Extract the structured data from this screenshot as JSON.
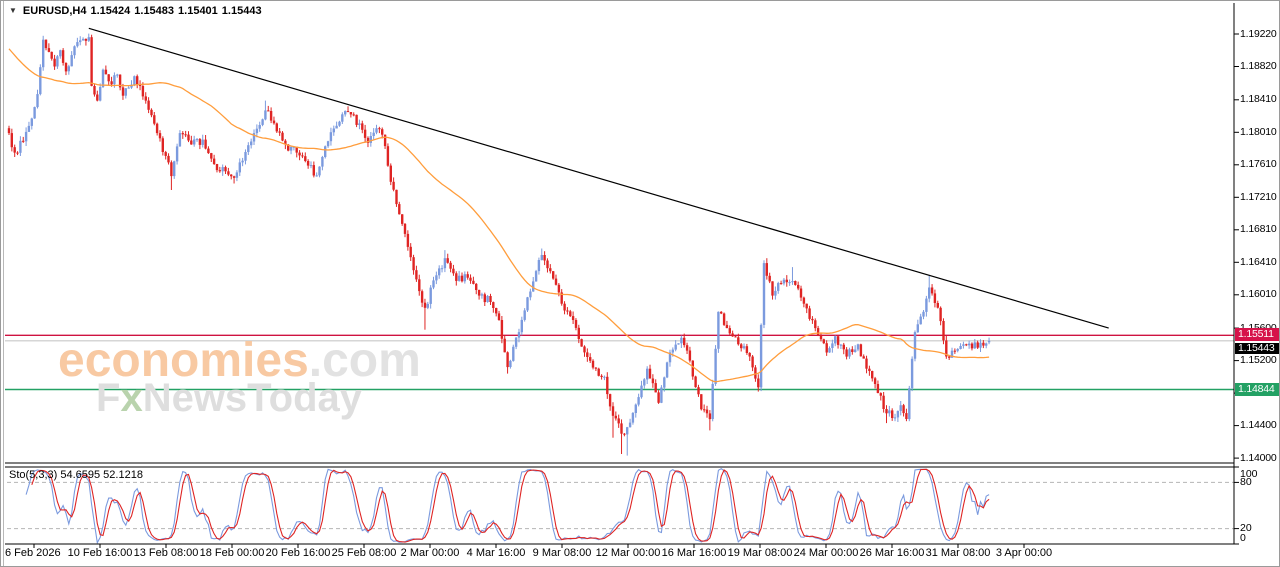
{
  "header": {
    "collapse_glyph": "▼",
    "symbol_period": "EURUSD,H4",
    "open": "1.15424",
    "high": "1.15483",
    "low": "1.15401",
    "close": "1.15443"
  },
  "watermark": {
    "brand": "economies",
    "brand_suffix": ".com",
    "tagline_prefix": "F",
    "tagline_x": "x",
    "tagline_suffix": "NewsToday",
    "brand_color": "#f8c9a2",
    "suffix_color": "#e2e2e2",
    "tagline_color": "#dedede",
    "tagline_x_color": "#b9d3ad"
  },
  "price_axis": {
    "ticks": [
      "1.19220",
      "1.18820",
      "1.18410",
      "1.18010",
      "1.17610",
      "1.17210",
      "1.16810",
      "1.16410",
      "1.16010",
      "1.15600",
      "1.15200",
      "1.14800",
      "1.14400",
      "1.14000"
    ],
    "boxes": {
      "resistance": {
        "text": "1.15511",
        "color": "#d6134a"
      },
      "current": {
        "text": "1.15443",
        "color": "#000000"
      },
      "support": {
        "text": "1.14844",
        "color": "#23a164"
      }
    }
  },
  "time_axis": {
    "labels": [
      "6 Feb 2026",
      "10 Feb 16:00",
      "13 Feb 08:00",
      "18 Feb 00:00",
      "20 Feb 16:00",
      "25 Feb 08:00",
      "2 Mar 00:00",
      "4 Mar 16:00",
      "9 Mar 08:00",
      "12 Mar 00:00",
      "16 Mar 16:00",
      "19 Mar 08:00",
      "24 Mar 00:00",
      "26 Mar 16:00",
      "31 Mar 08:00",
      "3 Apr 00:00"
    ]
  },
  "indicator_pane": {
    "label": "Sto(5,3,3) 54.6595 52.1218",
    "levels": [
      "100",
      "80",
      "20",
      "0"
    ]
  },
  "chart_data": {
    "type": "candlestick",
    "symbol": "EURUSD",
    "period": "H4",
    "bars": 345,
    "ohlc_last": {
      "open": 1.15424,
      "high": 1.15483,
      "low": 1.15401,
      "close": 1.15443
    },
    "price_range_visible": [
      1.14,
      1.193
    ],
    "price_anchors": [
      [
        0,
        1.18
      ],
      [
        2,
        1.1776
      ],
      [
        5,
        1.179
      ],
      [
        8,
        1.1818
      ],
      [
        10,
        1.1848
      ],
      [
        12,
        1.1915
      ],
      [
        14,
        1.19
      ],
      [
        16,
        1.1882
      ],
      [
        18,
        1.1902
      ],
      [
        20,
        1.1876
      ],
      [
        22,
        1.1896
      ],
      [
        24,
        1.1912
      ],
      [
        26,
        1.1916
      ],
      [
        28,
        1.1918
      ],
      [
        29,
        1.1858
      ],
      [
        31,
        1.184
      ],
      [
        33,
        1.1878
      ],
      [
        36,
        1.186
      ],
      [
        38,
        1.1872
      ],
      [
        40,
        1.1846
      ],
      [
        42,
        1.1856
      ],
      [
        44,
        1.187
      ],
      [
        46,
        1.1858
      ],
      [
        48,
        1.184
      ],
      [
        50,
        1.1822
      ],
      [
        52,
        1.18
      ],
      [
        55,
        1.1772
      ],
      [
        57,
        1.1747
      ],
      [
        60,
        1.18
      ],
      [
        64,
        1.1786
      ],
      [
        68,
        1.1792
      ],
      [
        72,
        1.1762
      ],
      [
        76,
        1.1753
      ],
      [
        79,
        1.1745
      ],
      [
        82,
        1.1766
      ],
      [
        86,
        1.18
      ],
      [
        90,
        1.1828
      ],
      [
        93,
        1.1812
      ],
      [
        97,
        1.1786
      ],
      [
        101,
        1.1776
      ],
      [
        105,
        1.176
      ],
      [
        108,
        1.1748
      ],
      [
        112,
        1.179
      ],
      [
        116,
        1.1814
      ],
      [
        119,
        1.1826
      ],
      [
        123,
        1.1812
      ],
      [
        126,
        1.1788
      ],
      [
        129,
        1.1806
      ],
      [
        131,
        1.1798
      ],
      [
        134,
        1.174
      ],
      [
        137,
        1.17
      ],
      [
        140,
        1.166
      ],
      [
        143,
        1.162
      ],
      [
        146,
        1.1585
      ],
      [
        150,
        1.1625
      ],
      [
        153,
        1.1646
      ],
      [
        157,
        1.1618
      ],
      [
        161,
        1.1622
      ],
      [
        165,
        1.16
      ],
      [
        169,
        1.1592
      ],
      [
        172,
        1.157
      ],
      [
        175,
        1.1512
      ],
      [
        179,
        1.1555
      ],
      [
        183,
        1.1605
      ],
      [
        187,
        1.165
      ],
      [
        190,
        1.163
      ],
      [
        194,
        1.159
      ],
      [
        198,
        1.157
      ],
      [
        202,
        1.153
      ],
      [
        206,
        1.151
      ],
      [
        209,
        1.15
      ],
      [
        212,
        1.1452
      ],
      [
        215,
        1.143
      ],
      [
        217,
        1.1438
      ],
      [
        221,
        1.1475
      ],
      [
        224,
        1.151
      ],
      [
        228,
        1.1468
      ],
      [
        232,
        1.153
      ],
      [
        236,
        1.1548
      ],
      [
        239,
        1.152
      ],
      [
        243,
        1.146
      ],
      [
        246,
        1.1448
      ],
      [
        249,
        1.158
      ],
      [
        252,
        1.156
      ],
      [
        256,
        1.154
      ],
      [
        260,
        1.1525
      ],
      [
        263,
        1.1487
      ],
      [
        265,
        1.164
      ],
      [
        268,
        1.16
      ],
      [
        271,
        1.1615
      ],
      [
        275,
        1.1618
      ],
      [
        279,
        1.159
      ],
      [
        283,
        1.156
      ],
      [
        287,
        1.153
      ],
      [
        290,
        1.155
      ],
      [
        294,
        1.1525
      ],
      [
        298,
        1.154
      ],
      [
        301,
        1.151
      ],
      [
        305,
        1.148
      ],
      [
        308,
        1.1455
      ],
      [
        311,
        1.145
      ],
      [
        313,
        1.1465
      ],
      [
        315,
        1.1448
      ],
      [
        318,
        1.1555
      ],
      [
        321,
        1.158
      ],
      [
        323,
        1.161
      ],
      [
        326,
        1.1585
      ],
      [
        329,
        1.1525
      ],
      [
        332,
        1.1532
      ],
      [
        335,
        1.154
      ],
      [
        338,
        1.1535
      ],
      [
        341,
        1.1542
      ],
      [
        344,
        1.15443
      ]
    ],
    "low_wicks": [
      [
        57,
        1.173
      ],
      [
        79,
        1.1738
      ],
      [
        146,
        1.1558
      ],
      [
        175,
        1.1504
      ],
      [
        212,
        1.1425
      ],
      [
        215,
        1.1405
      ],
      [
        217,
        1.1403
      ],
      [
        246,
        1.1434
      ],
      [
        263,
        1.1482
      ],
      [
        308,
        1.1443
      ]
    ],
    "high_wicks": [
      [
        28,
        1.19225
      ],
      [
        90,
        1.184
      ],
      [
        119,
        1.1833
      ],
      [
        153,
        1.1656
      ],
      [
        187,
        1.1658
      ],
      [
        265,
        1.1643
      ],
      [
        275,
        1.1635
      ],
      [
        323,
        1.1625
      ]
    ],
    "moving_average": {
      "period": 50,
      "color": "#ff9d3c"
    },
    "trendline": {
      "from_bar": 28,
      "from_price": 1.1929,
      "to_bar": 386,
      "to_price": 1.156,
      "color": "#000000"
    },
    "hlines": [
      {
        "name": "resistance-line",
        "price": 1.15511,
        "color": "#cf1240",
        "width": 1.4
      },
      {
        "name": "current-price-line",
        "price": 1.15443,
        "color": "#c9c9c9",
        "width": 1.1
      },
      {
        "name": "support-line",
        "price": 1.14844,
        "color": "#23a164",
        "width": 1.4
      }
    ],
    "stochastic": {
      "k_period": 5,
      "slowing": 3,
      "d_period": 3,
      "k_color": "#7b9ade",
      "d_color": "#df2423",
      "levels": [
        80,
        20
      ],
      "last_k": 54.6595,
      "last_d": 52.1218
    },
    "colors": {
      "bull": "#7b9ade",
      "bear": "#df2423"
    }
  }
}
